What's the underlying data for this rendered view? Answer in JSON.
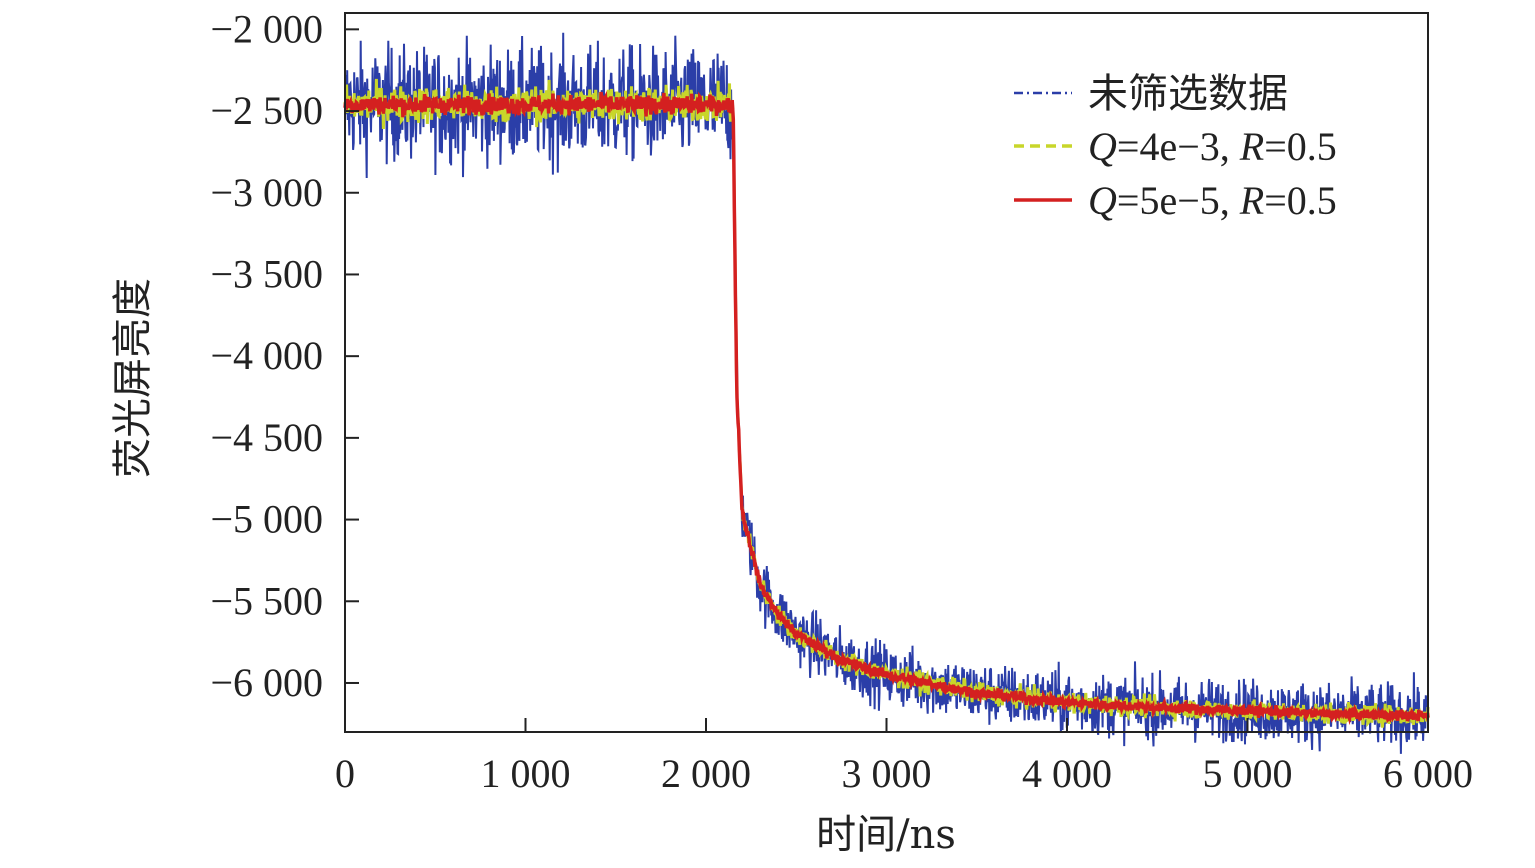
{
  "chart_data": {
    "type": "line",
    "title": "",
    "xlabel": "时间/ns",
    "ylabel": "荧光屏亮度",
    "xlim": [
      0,
      6000
    ],
    "ylim": [
      -6300,
      -1900
    ],
    "x_ticks": [
      0,
      1000,
      2000,
      3000,
      4000,
      5000,
      6000
    ],
    "x_tick_labels": [
      "0",
      "1 000",
      "2 000",
      "3 000",
      "4 000",
      "5 000",
      "6 000"
    ],
    "y_ticks": [
      -2000,
      -2500,
      -3000,
      -3500,
      -4000,
      -4500,
      -5000,
      -5500,
      -6000
    ],
    "y_tick_labels": [
      "−2 000",
      "−2 500",
      "−3 000",
      "−3 500",
      "−4 000",
      "−4 500",
      "−5 000",
      "−5 500",
      "−6 000"
    ],
    "grid": false,
    "legend_position": "top-right",
    "x": [
      0,
      500,
      1000,
      1500,
      2000,
      2150,
      2170,
      2200,
      2300,
      2400,
      2500,
      2750,
      3000,
      3500,
      4000,
      4500,
      5000,
      5500,
      6000
    ],
    "series": [
      {
        "name": "未筛选数据",
        "label_parts": [
          "未筛选数据"
        ],
        "color": "#2b3ea8",
        "style": "dash-dot",
        "noise": 170,
        "values": [
          -2460,
          -2460,
          -2460,
          -2460,
          -2460,
          -2460,
          -4200,
          -4950,
          -5400,
          -5580,
          -5700,
          -5860,
          -5950,
          -6060,
          -6120,
          -6150,
          -6170,
          -6190,
          -6200
        ]
      },
      {
        "name": "Q=4e−3, R=0.5",
        "label_parts": [
          "Q",
          "=4e−3, ",
          "R",
          "=0.5"
        ],
        "color": "#c8d62a",
        "style": "dashed",
        "noise": 55,
        "values": [
          -2460,
          -2460,
          -2460,
          -2460,
          -2460,
          -2460,
          -4200,
          -4950,
          -5400,
          -5580,
          -5700,
          -5860,
          -5950,
          -6060,
          -6120,
          -6150,
          -6170,
          -6190,
          -6200
        ]
      },
      {
        "name": "Q=5e−5, R=0.5",
        "label_parts": [
          "Q",
          "=5e−5, ",
          "R",
          "=0.5"
        ],
        "color": "#d42020",
        "style": "solid",
        "noise": 28,
        "values": [
          -2460,
          -2460,
          -2460,
          -2460,
          -2460,
          -2460,
          -4200,
          -4950,
          -5400,
          -5580,
          -5700,
          -5860,
          -5950,
          -6060,
          -6120,
          -6150,
          -6170,
          -6190,
          -6200
        ]
      }
    ]
  }
}
